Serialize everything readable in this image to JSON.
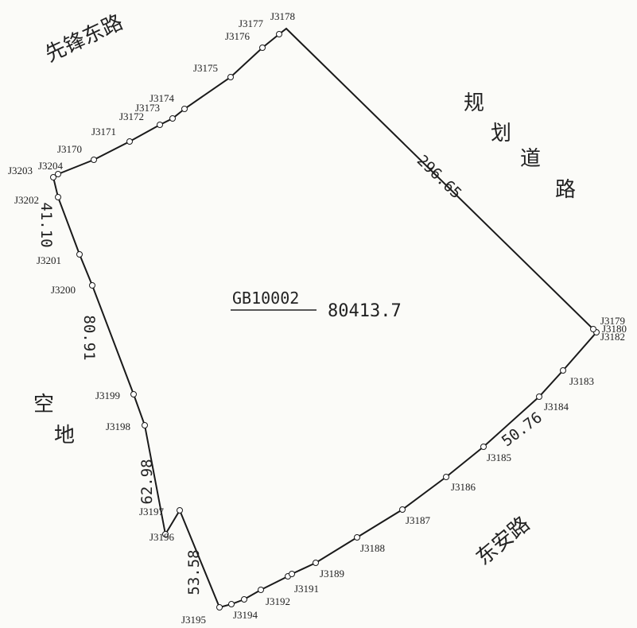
{
  "roads": {
    "top_left": "先锋东路",
    "right": [
      "规",
      "划",
      "道",
      "路"
    ],
    "bottom_right": "东安路",
    "left": [
      "空",
      "地"
    ]
  },
  "parcel": {
    "id": "GB10002",
    "area": "80413.7"
  },
  "edge_lengths": [
    "296.65",
    "50.76",
    "53.58",
    "62.98",
    "80.91",
    "41.10"
  ],
  "points": [
    "J3178",
    "J3177",
    "J3176",
    "J3175",
    "J3174",
    "J3173",
    "J3172",
    "J3171",
    "J3170",
    "J3204",
    "J3203",
    "J3202",
    "J3201",
    "J3200",
    "J3199",
    "J3198",
    "J3197",
    "J3196",
    "J3195",
    "J3194",
    "J3192",
    "J3191",
    "J3189",
    "J3188",
    "J3187",
    "J3186",
    "J3185",
    "J3184",
    "J3183",
    "J3182",
    "J3180",
    "J3179"
  ]
}
